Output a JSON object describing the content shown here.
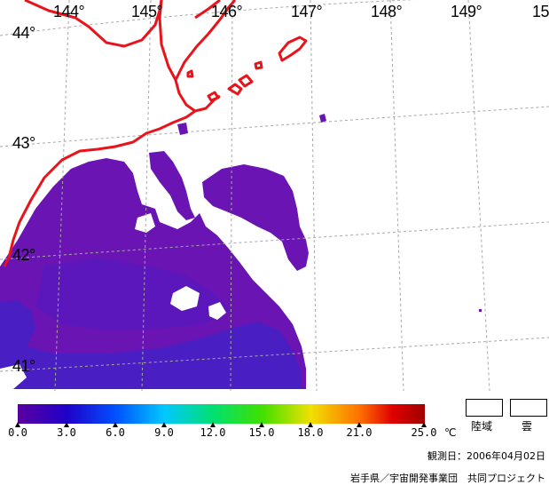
{
  "map": {
    "lon_labels": [
      "144°",
      "145°",
      "146°",
      "147°",
      "148°",
      "149°",
      "15"
    ],
    "lat_labels": [
      "44°",
      "43°",
      "42°",
      "41°"
    ],
    "colors": {
      "coast": "#e8141c",
      "grid": "#a8a8a8",
      "sst_low": "#6a14b4",
      "sst_mid": "#4a1ec8",
      "sst_deep": "#3228d2",
      "cloud": "#ffffff"
    }
  },
  "scale": {
    "ticks": [
      "0.0",
      "3.0",
      "6.0",
      "9.0",
      "12.0",
      "15.0",
      "18.0",
      "21.0",
      "25.0"
    ],
    "unit": "℃",
    "range": [
      0,
      25
    ],
    "colors": [
      "#5a00a0",
      "#2000c8",
      "#0050ff",
      "#00c8ff",
      "#00e070",
      "#40e000",
      "#f0e000",
      "#ff7000",
      "#e00000",
      "#a00000"
    ]
  },
  "legend": {
    "land_label": "陸域",
    "cloud_label": "雲"
  },
  "footer": {
    "observation_date": "観測日：2006年04月02日",
    "credit": "岩手県／宇宙開発事業団　共同プロジェクト"
  }
}
